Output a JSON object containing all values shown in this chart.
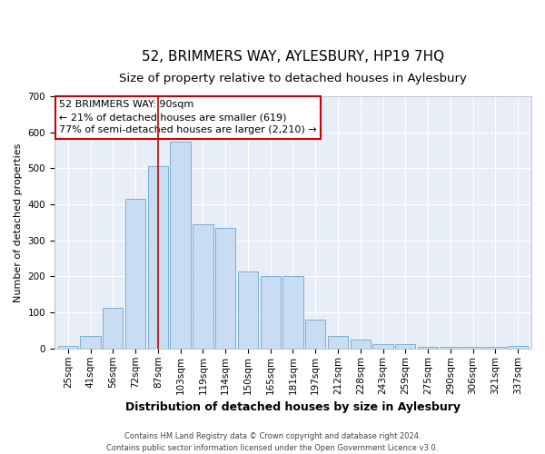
{
  "title": "52, BRIMMERS WAY, AYLESBURY, HP19 7HQ",
  "subtitle": "Size of property relative to detached houses in Aylesbury",
  "xlabel": "Distribution of detached houses by size in Aylesbury",
  "ylabel": "Number of detached properties",
  "categories": [
    "25sqm",
    "41sqm",
    "56sqm",
    "72sqm",
    "87sqm",
    "103sqm",
    "119sqm",
    "134sqm",
    "150sqm",
    "165sqm",
    "181sqm",
    "197sqm",
    "212sqm",
    "228sqm",
    "243sqm",
    "259sqm",
    "275sqm",
    "290sqm",
    "306sqm",
    "321sqm",
    "337sqm"
  ],
  "values": [
    8,
    35,
    112,
    415,
    505,
    575,
    345,
    335,
    215,
    200,
    200,
    80,
    35,
    25,
    12,
    12,
    5,
    5,
    5,
    5,
    8
  ],
  "bar_color": "#c9ddf2",
  "bar_edge_color": "#7bafd4",
  "vline_x_index": 4,
  "vline_color": "#cc0000",
  "annotation_text": "52 BRIMMERS WAY: 90sqm\n← 21% of detached houses are smaller (619)\n77% of semi-detached houses are larger (2,210) →",
  "annotation_box_color": "#ffffff",
  "annotation_box_edge_color": "#cc0000",
  "ylim": [
    0,
    700
  ],
  "yticks": [
    0,
    100,
    200,
    300,
    400,
    500,
    600,
    700
  ],
  "background_color": "#e8eef8",
  "footer_text": "Contains HM Land Registry data © Crown copyright and database right 2024.\nContains public sector information licensed under the Open Government Licence v3.0.",
  "title_fontsize": 11,
  "subtitle_fontsize": 9.5,
  "xlabel_fontsize": 9,
  "ylabel_fontsize": 8,
  "tick_fontsize": 7.5,
  "footer_fontsize": 6,
  "annotation_fontsize": 8
}
